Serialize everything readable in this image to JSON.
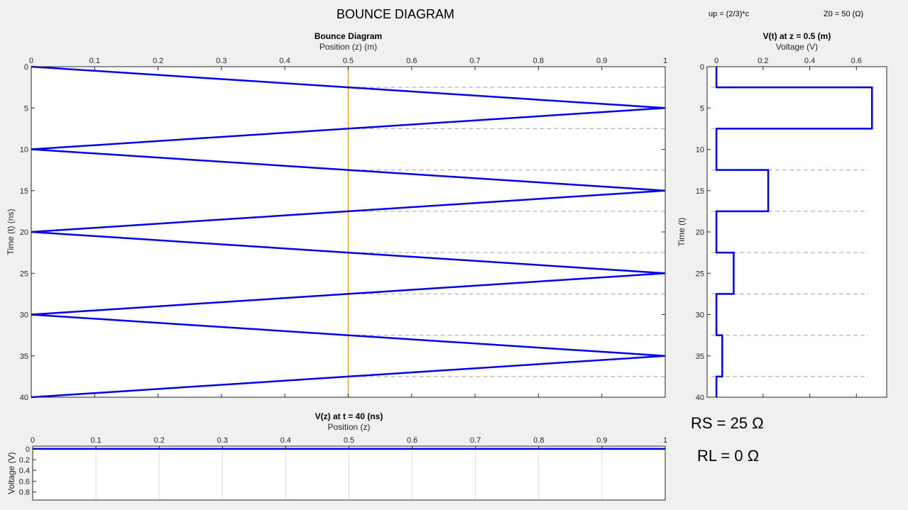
{
  "header": {
    "title": "BOUNCE DIAGRAM",
    "up_label": "up = (2/3)*c",
    "z0_label": "Z0 = 50 (Ω)"
  },
  "params": {
    "rs_label": "RS = 25 Ω",
    "rl_label": "RL = 0 Ω"
  },
  "chart_data": [
    {
      "id": "bounce",
      "type": "line",
      "title": "Bounce Diagram",
      "xlabel": "Position (z) (m)",
      "ylabel": "Time (t) (ns)",
      "xlim": [
        0,
        1
      ],
      "ylim": [
        0,
        40
      ],
      "y_reversed": true,
      "x_axis_position": "top",
      "x_ticks": [
        0,
        0.1,
        0.2,
        0.3,
        0.4,
        0.5,
        0.6,
        0.7,
        0.8,
        0.9,
        1
      ],
      "y_ticks": [
        0,
        5,
        10,
        15,
        20,
        25,
        30,
        35,
        40
      ],
      "series": [
        {
          "color": "#0000e6",
          "x": [
            0,
            1,
            0,
            1,
            0,
            1,
            0,
            1,
            0
          ],
          "y": [
            0,
            5,
            10,
            15,
            20,
            25,
            30,
            35,
            40
          ]
        }
      ],
      "probe_line": {
        "x": 0.5,
        "color": "#e8a33a"
      },
      "crossing_times": [
        2.5,
        7.5,
        12.5,
        17.5,
        22.5,
        27.5,
        32.5,
        37.5
      ],
      "grid": false
    },
    {
      "id": "vt",
      "type": "line",
      "title": "V(t) at z = 0.5 (m)",
      "xlabel": "Voltage (V)",
      "ylabel": "Time (t)",
      "xlim": [
        -0.04,
        0.73
      ],
      "ylim": [
        0,
        40
      ],
      "y_reversed": true,
      "x_axis_position": "top",
      "x_ticks": [
        0,
        0.2,
        0.4,
        0.6
      ],
      "y_ticks": [
        0,
        5,
        10,
        15,
        20,
        25,
        30,
        35,
        40
      ],
      "series": [
        {
          "color": "#0000e6",
          "t": [
            0,
            2.5,
            2.5,
            7.5,
            7.5,
            12.5,
            12.5,
            17.5,
            17.5,
            22.5,
            22.5,
            27.5,
            27.5,
            32.5,
            32.5,
            37.5,
            37.5,
            40
          ],
          "v": [
            0,
            0,
            0.667,
            0.667,
            0,
            0,
            0.222,
            0.222,
            0,
            0,
            0.074,
            0.074,
            0,
            0,
            0.025,
            0.025,
            0,
            0
          ]
        }
      ],
      "grid": false
    },
    {
      "id": "vz",
      "type": "line",
      "title": "V(z) at t = 40 (ns)",
      "xlabel": "Position (z)",
      "ylabel": "Voltage (V)",
      "xlim": [
        0,
        1
      ],
      "ylim": [
        -0.05,
        0.95
      ],
      "y_reversed": true,
      "x_axis_position": "top",
      "x_ticks": [
        0,
        0.1,
        0.2,
        0.3,
        0.4,
        0.5,
        0.6,
        0.7,
        0.8,
        0.9,
        1
      ],
      "y_ticks": [
        0,
        0.2,
        0.4,
        0.6,
        0.8
      ],
      "series": [
        {
          "color": "#0000e6",
          "x": [
            0,
            1
          ],
          "y": [
            0,
            0
          ]
        }
      ],
      "grid": true
    }
  ]
}
